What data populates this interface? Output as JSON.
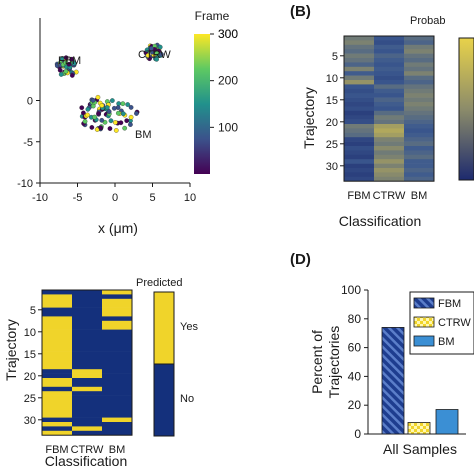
{
  "chart_data": [
    {
      "panel": "A",
      "type": "scatter",
      "xlabel": "x (μm)",
      "xticks": [
        -10,
        -5,
        0,
        5,
        10
      ],
      "yticks": [
        -10,
        -5,
        0
      ],
      "xlim": [
        -10,
        10
      ],
      "ylim": [
        -10,
        10
      ],
      "colorbar": {
        "title": "Frame",
        "ticks": [
          100,
          200,
          300
        ],
        "range": [
          0,
          300
        ]
      },
      "annotations": [
        "FBM",
        "CTRW",
        "BM"
      ],
      "clusters": [
        {
          "label": "FBM",
          "center": [
            -6.4,
            4.0
          ],
          "spread": 1.4
        },
        {
          "label": "CTRW",
          "center": [
            5.2,
            5.9
          ],
          "spread": 1.1
        },
        {
          "label": "BM",
          "center": [
            -1.0,
            -1.6
          ],
          "spread": 3.6
        }
      ]
    },
    {
      "panel": "B",
      "panel_label": "(B)",
      "type": "heatmap",
      "title": "Probab",
      "xlabel": "Classification",
      "ylabel": "Trajectory",
      "categories": [
        "FBM",
        "CTRW",
        "BM"
      ],
      "yticks": [
        5,
        10,
        15,
        20,
        25,
        30
      ],
      "rows": 33,
      "value_range": [
        0,
        1
      ],
      "colormap": [
        "#1d2a6e",
        "#3c5a8f",
        "#8c8c6a",
        "#e8d24a"
      ],
      "values": [
        [
          0.55,
          0.3,
          0.45
        ],
        [
          0.6,
          0.25,
          0.4
        ],
        [
          0.5,
          0.35,
          0.55
        ],
        [
          0.45,
          0.3,
          0.6
        ],
        [
          0.55,
          0.4,
          0.5
        ],
        [
          0.5,
          0.35,
          0.45
        ],
        [
          0.4,
          0.3,
          0.55
        ],
        [
          0.6,
          0.35,
          0.5
        ],
        [
          0.35,
          0.3,
          0.6
        ],
        [
          0.55,
          0.25,
          0.45
        ],
        [
          0.7,
          0.3,
          0.4
        ],
        [
          0.3,
          0.45,
          0.5
        ],
        [
          0.25,
          0.35,
          0.55
        ],
        [
          0.3,
          0.3,
          0.6
        ],
        [
          0.25,
          0.4,
          0.55
        ],
        [
          0.2,
          0.35,
          0.6
        ],
        [
          0.25,
          0.3,
          0.55
        ],
        [
          0.15,
          0.45,
          0.5
        ],
        [
          0.2,
          0.55,
          0.45
        ],
        [
          0.25,
          0.5,
          0.4
        ],
        [
          0.55,
          0.75,
          0.35
        ],
        [
          0.5,
          0.8,
          0.3
        ],
        [
          0.45,
          0.75,
          0.35
        ],
        [
          0.2,
          0.6,
          0.4
        ],
        [
          0.15,
          0.55,
          0.45
        ],
        [
          0.25,
          0.65,
          0.35
        ],
        [
          0.2,
          0.55,
          0.4
        ],
        [
          0.15,
          0.6,
          0.45
        ],
        [
          0.3,
          0.7,
          0.35
        ],
        [
          0.15,
          0.6,
          0.35
        ],
        [
          0.2,
          0.7,
          0.4
        ],
        [
          0.15,
          0.65,
          0.35
        ],
        [
          0.2,
          0.6,
          0.4
        ]
      ]
    },
    {
      "panel": "C",
      "type": "heatmap",
      "title": "Predicted",
      "xlabel": "Classification",
      "ylabel": "Trajectory",
      "categories": [
        "FBM",
        "CTRW",
        "BM"
      ],
      "yticks": [
        5,
        10,
        15,
        20,
        25,
        30
      ],
      "rows": 33,
      "legend": [
        "Yes",
        "No"
      ],
      "colors": {
        "yes": "#f0d42a",
        "no": "#14307c"
      },
      "values": [
        [
          0,
          0,
          1
        ],
        [
          1,
          0,
          0
        ],
        [
          1,
          0,
          1
        ],
        [
          1,
          0,
          1
        ],
        [
          0,
          0,
          1
        ],
        [
          0,
          0,
          1
        ],
        [
          1,
          0,
          0
        ],
        [
          1,
          0,
          1
        ],
        [
          1,
          0,
          1
        ],
        [
          1,
          0,
          0
        ],
        [
          1,
          0,
          0
        ],
        [
          1,
          0,
          0
        ],
        [
          1,
          0,
          0
        ],
        [
          1,
          0,
          0
        ],
        [
          1,
          0,
          0
        ],
        [
          1,
          0,
          0
        ],
        [
          1,
          0,
          0
        ],
        [
          1,
          0,
          0
        ],
        [
          0,
          1,
          0
        ],
        [
          0,
          1,
          0
        ],
        [
          1,
          0,
          0
        ],
        [
          1,
          0,
          0
        ],
        [
          0,
          1,
          0
        ],
        [
          1,
          0,
          0
        ],
        [
          1,
          0,
          0
        ],
        [
          1,
          0,
          0
        ],
        [
          1,
          0,
          0
        ],
        [
          1,
          0,
          0
        ],
        [
          1,
          0,
          0
        ],
        [
          0,
          0,
          1
        ],
        [
          1,
          0,
          0
        ],
        [
          0,
          1,
          0
        ],
        [
          1,
          0,
          0
        ]
      ]
    },
    {
      "panel": "D",
      "panel_label": "(D)",
      "type": "bar",
      "ylabel": "Percent of Trajectories",
      "xlabel": "All Samples",
      "ylim": [
        0,
        100
      ],
      "yticks": [
        0,
        20,
        40,
        60,
        80,
        100
      ],
      "series": [
        {
          "name": "FBM",
          "values": [
            74
          ],
          "color": "#2e4fa5",
          "pattern": "diagonal"
        },
        {
          "name": "CTRW",
          "values": [
            8
          ],
          "color": "#f0d42a",
          "pattern": "checker"
        },
        {
          "name": "BM",
          "values": [
            17
          ],
          "color": "#3b8fd4",
          "pattern": "solid"
        }
      ],
      "legend_labels": [
        "FBM",
        "CTRW",
        "BM"
      ]
    }
  ]
}
